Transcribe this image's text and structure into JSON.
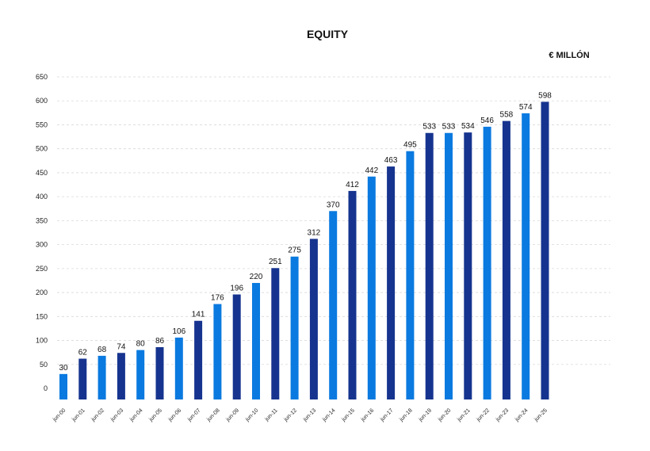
{
  "chart_data": {
    "type": "bar",
    "title": "EQUITY",
    "unit_label": "€ MILLÓN",
    "categories": [
      "jun-00",
      "jun-01",
      "jun-02",
      "jun-03",
      "jun-04",
      "jun-05",
      "jun-06",
      "jun-07",
      "jun-08",
      "jun-09",
      "jun-10",
      "jun-11",
      "jun-12",
      "jun-13",
      "jun-14",
      "jun-15",
      "jun-16",
      "jun-17",
      "jun-18",
      "jun-19",
      "jun-20",
      "jun-21",
      "jun-22",
      "jun-23",
      "jun-24",
      "jun-25"
    ],
    "values": [
      30,
      62,
      68,
      74,
      80,
      86,
      106,
      141,
      176,
      196,
      220,
      251,
      275,
      312,
      370,
      412,
      442,
      463,
      495,
      533,
      533,
      534,
      546,
      558,
      574,
      598
    ],
    "bar_colors": [
      "#0a7ae0",
      "#16348f",
      "#0a7ae0",
      "#16348f",
      "#0a7ae0",
      "#16348f",
      "#0a7ae0",
      "#16348f",
      "#0a7ae0",
      "#16348f",
      "#0a7ae0",
      "#16348f",
      "#0a7ae0",
      "#16348f",
      "#0a7ae0",
      "#16348f",
      "#0a7ae0",
      "#16348f",
      "#0a7ae0",
      "#16348f",
      "#0a7ae0",
      "#16348f",
      "#0a7ae0",
      "#16348f",
      "#0a7ae0",
      "#16348f"
    ],
    "yticks": [
      "0",
      "50",
      "100",
      "150",
      "200",
      "250",
      "300",
      "350",
      "400",
      "450",
      "500",
      "550",
      "600",
      "650"
    ],
    "ytick_values": [
      0,
      50,
      100,
      150,
      200,
      250,
      300,
      350,
      400,
      450,
      500,
      550,
      600,
      650
    ],
    "ylim": [
      0,
      650
    ],
    "grid": true,
    "legend": false
  }
}
